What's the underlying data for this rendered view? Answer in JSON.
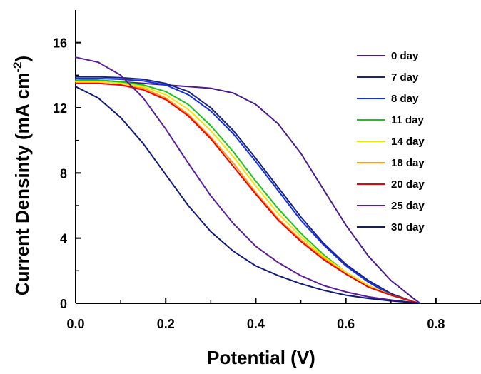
{
  "chart_data": {
    "type": "line",
    "title": "",
    "xlabel": "Potential (V)",
    "ylabel": "Current Densinty (mA cm",
    "ylabel_superscript": "-2",
    "ylabel_suffix": ")",
    "xlim": [
      0.0,
      0.9
    ],
    "ylim": [
      0,
      18
    ],
    "xticks": [
      "0.0",
      "0.2",
      "0.4",
      "0.6",
      "0.8"
    ],
    "yticks": [
      "0",
      "4",
      "8",
      "12",
      "16"
    ],
    "grid": false,
    "legend_position": "top-right",
    "series": [
      {
        "name": "0 day",
        "color": "#4b1a8c",
        "x": [
          0,
          0.05,
          0.1,
          0.15,
          0.2,
          0.25,
          0.3,
          0.35,
          0.4,
          0.45,
          0.5,
          0.55,
          0.6,
          0.65,
          0.7,
          0.75,
          0.765
        ],
        "y": [
          13.8,
          13.7,
          13.6,
          13.5,
          13.4,
          13.3,
          13.2,
          12.9,
          12.2,
          11.0,
          9.2,
          7.0,
          4.8,
          2.9,
          1.4,
          0.3,
          0
        ]
      },
      {
        "name": "7 day",
        "color": "#1a237e",
        "x": [
          0,
          0.05,
          0.1,
          0.15,
          0.2,
          0.25,
          0.3,
          0.35,
          0.4,
          0.45,
          0.5,
          0.55,
          0.6,
          0.65,
          0.7,
          0.75,
          0.765
        ],
        "y": [
          13.9,
          13.9,
          13.85,
          13.75,
          13.5,
          13.0,
          12.0,
          10.6,
          8.9,
          7.1,
          5.3,
          3.7,
          2.4,
          1.4,
          0.6,
          0.1,
          0
        ]
      },
      {
        "name": "8 day",
        "color": "#1530e6",
        "x": [
          0,
          0.05,
          0.1,
          0.15,
          0.2,
          0.25,
          0.3,
          0.35,
          0.4,
          0.45,
          0.5,
          0.55,
          0.6,
          0.65,
          0.7,
          0.75,
          0.765
        ],
        "y": [
          13.8,
          13.8,
          13.75,
          13.65,
          13.4,
          12.8,
          11.8,
          10.4,
          8.7,
          6.9,
          5.1,
          3.6,
          2.3,
          1.3,
          0.5,
          0.1,
          0
        ]
      },
      {
        "name": "11 day",
        "color": "#1bc41b",
        "x": [
          0,
          0.05,
          0.1,
          0.15,
          0.2,
          0.25,
          0.3,
          0.35,
          0.4,
          0.45,
          0.5,
          0.55,
          0.6,
          0.65,
          0.7,
          0.75,
          0.765
        ],
        "y": [
          13.7,
          13.7,
          13.6,
          13.4,
          13.0,
          12.2,
          10.9,
          9.3,
          7.5,
          5.8,
          4.3,
          3.0,
          1.9,
          1.1,
          0.5,
          0.1,
          0
        ]
      },
      {
        "name": "14 day",
        "color": "#f2e600",
        "x": [
          0,
          0.05,
          0.1,
          0.15,
          0.2,
          0.25,
          0.3,
          0.35,
          0.4,
          0.45,
          0.5,
          0.55,
          0.6,
          0.65,
          0.7,
          0.75,
          0.765
        ],
        "y": [
          13.6,
          13.6,
          13.5,
          13.3,
          12.8,
          11.9,
          10.6,
          9.0,
          7.2,
          5.5,
          4.1,
          2.9,
          1.9,
          1.1,
          0.5,
          0.1,
          0
        ]
      },
      {
        "name": "18 day",
        "color": "#ff9a1a",
        "x": [
          0,
          0.05,
          0.1,
          0.15,
          0.2,
          0.25,
          0.3,
          0.35,
          0.4,
          0.45,
          0.5,
          0.55,
          0.6,
          0.65,
          0.7,
          0.75,
          0.765
        ],
        "y": [
          13.5,
          13.5,
          13.4,
          13.2,
          12.6,
          11.6,
          10.2,
          8.6,
          6.8,
          5.2,
          3.9,
          2.8,
          1.8,
          1.0,
          0.5,
          0.1,
          0
        ]
      },
      {
        "name": "20 day",
        "color": "#f20000",
        "x": [
          0,
          0.05,
          0.1,
          0.15,
          0.2,
          0.25,
          0.3,
          0.35,
          0.4,
          0.45,
          0.5,
          0.55,
          0.6,
          0.65,
          0.7,
          0.75,
          0.765
        ],
        "y": [
          13.5,
          13.5,
          13.4,
          13.1,
          12.5,
          11.5,
          10.1,
          8.4,
          6.7,
          5.1,
          3.8,
          2.7,
          1.8,
          1.0,
          0.5,
          0.1,
          0
        ]
      },
      {
        "name": "25 day",
        "color": "#5b1e9b",
        "x": [
          0,
          0.05,
          0.1,
          0.15,
          0.2,
          0.25,
          0.3,
          0.35,
          0.4,
          0.45,
          0.5,
          0.55,
          0.6,
          0.65,
          0.7,
          0.75,
          0.765
        ],
        "y": [
          15.1,
          14.8,
          14.0,
          12.6,
          10.7,
          8.6,
          6.6,
          4.9,
          3.5,
          2.5,
          1.7,
          1.1,
          0.7,
          0.4,
          0.2,
          0.05,
          0
        ]
      },
      {
        "name": "30 day",
        "color": "#101a7a",
        "x": [
          0,
          0.05,
          0.1,
          0.15,
          0.2,
          0.25,
          0.3,
          0.35,
          0.4,
          0.45,
          0.5,
          0.55,
          0.6,
          0.65,
          0.7,
          0.75,
          0.765
        ],
        "y": [
          13.3,
          12.6,
          11.4,
          9.8,
          7.9,
          6.0,
          4.4,
          3.2,
          2.3,
          1.7,
          1.2,
          0.8,
          0.5,
          0.3,
          0.15,
          0.05,
          0
        ]
      }
    ]
  }
}
